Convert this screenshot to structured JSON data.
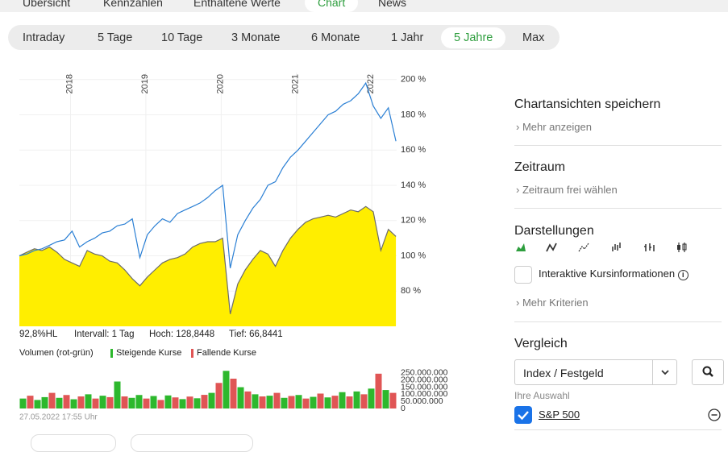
{
  "tabs": {
    "items": [
      "Übersicht",
      "Kennzahlen",
      "Enthaltene Werte",
      "Chart",
      "News"
    ],
    "selected": 3
  },
  "periods": {
    "items": [
      "Intraday",
      "5 Tage",
      "10 Tage",
      "3 Monate",
      "6 Monate",
      "1 Jahr",
      "5 Jahre",
      "Max"
    ],
    "selected": 6
  },
  "chart": {
    "type": "line",
    "x": [
      2017.32,
      2017.42,
      2017.52,
      2017.62,
      2017.72,
      2017.82,
      2017.92,
      2018.02,
      2018.12,
      2018.22,
      2018.32,
      2018.42,
      2018.52,
      2018.62,
      2018.72,
      2018.82,
      2018.92,
      2019.02,
      2019.12,
      2019.22,
      2019.32,
      2019.42,
      2019.52,
      2019.62,
      2019.72,
      2019.82,
      2019.92,
      2020.02,
      2020.12,
      2020.22,
      2020.32,
      2020.42,
      2020.52,
      2020.62,
      2020.72,
      2020.82,
      2020.92,
      2021.02,
      2021.12,
      2021.22,
      2021.32,
      2021.42,
      2021.52,
      2021.62,
      2021.72,
      2021.82,
      2021.92,
      2022.02,
      2022.12,
      2022.22,
      2022.32
    ],
    "series": [
      {
        "color": "#2a7fd4",
        "values": [
          100,
          101,
          103,
          104,
          106,
          108,
          109,
          114,
          105,
          108,
          110,
          113,
          114,
          117,
          118,
          121,
          99,
          112,
          117,
          121,
          119,
          124,
          126,
          128,
          130,
          133,
          137,
          140,
          93,
          112,
          120,
          127,
          132,
          140,
          142,
          150,
          156,
          160,
          165,
          170,
          175,
          180,
          182,
          186,
          188,
          192,
          198,
          185,
          178,
          184,
          165
        ]
      },
      {
        "color": "#6b6b6b",
        "fill": "#ffee00",
        "values": [
          100,
          102,
          104,
          103,
          105,
          102,
          98,
          96,
          94,
          103,
          101,
          100,
          97,
          96,
          92,
          87,
          83,
          88,
          92,
          96,
          98,
          99,
          101,
          105,
          107,
          108,
          108,
          110,
          67,
          84,
          92,
          98,
          103,
          101,
          94,
          103,
          110,
          115,
          119,
          121,
          122,
          123,
          122,
          124,
          126,
          125,
          128,
          125,
          103,
          115,
          111
        ]
      }
    ],
    "xlim": [
      2017.32,
      2022.33
    ],
    "xticks": [
      2018,
      2019,
      2020,
      2021,
      2022
    ],
    "ylim": [
      60,
      204
    ],
    "yticks": [
      {
        "value": 80,
        "label": "80 %"
      },
      {
        "value": 100,
        "label": "100 %"
      },
      {
        "value": 120,
        "label": "120 %"
      },
      {
        "value": 140,
        "label": "140 %"
      },
      {
        "value": 160,
        "label": "160 %"
      },
      {
        "value": 180,
        "label": "180 %"
      },
      {
        "value": 200,
        "label": "200 %"
      }
    ],
    "grid": true
  },
  "stats": [
    "92,8%HL",
    "Intervall: 1 Tag",
    "Hoch: 128,8448",
    "Tief: 66,8441"
  ],
  "volume": {
    "type": "bar",
    "title": "Volumen (rot-grün)",
    "series": [
      {
        "name": "Steigende Kurse",
        "color": "#2db82d",
        "values": [
          70000000,
          null,
          60000000,
          80000000,
          null,
          75000000,
          null,
          65000000,
          null,
          100000000,
          null,
          90000000,
          null,
          190000000,
          null,
          75000000,
          95000000,
          null,
          88000000,
          null,
          92000000,
          null,
          66000000,
          null,
          72000000,
          null,
          110000000,
          null,
          265000000,
          null,
          150000000,
          null,
          100000000,
          null,
          90000000,
          null,
          75000000,
          null,
          95000000,
          null,
          82000000,
          null,
          78000000,
          null,
          115000000,
          null,
          120000000,
          null,
          140000000,
          null,
          130000000,
          null
        ]
      },
      {
        "name": "Fallende Kurse",
        "color": "#e05555",
        "values": [
          null,
          90000000,
          null,
          null,
          110000000,
          null,
          95000000,
          null,
          85000000,
          null,
          70000000,
          null,
          80000000,
          null,
          85000000,
          null,
          null,
          70000000,
          null,
          60000000,
          null,
          78000000,
          null,
          84000000,
          null,
          96000000,
          null,
          180000000,
          null,
          210000000,
          null,
          120000000,
          null,
          85000000,
          null,
          110000000,
          null,
          88000000,
          null,
          70000000,
          null,
          105000000,
          null,
          90000000,
          null,
          85000000,
          null,
          100000000,
          null,
          245000000,
          null,
          110000000
        ]
      }
    ],
    "ylim": [
      0,
      295000000
    ],
    "yticks": [
      0,
      {
        "value": 50000000,
        "label": "50.000.000"
      },
      {
        "value": 100000000,
        "label": "100.000.000"
      },
      {
        "value": 150000000,
        "label": "150.000.000"
      },
      {
        "value": 200000000,
        "label": "200.000.000"
      },
      {
        "value": 250000000,
        "label": "250.000.000"
      }
    ]
  },
  "timestamp": "27.05.2022 17:55 Uhr",
  "sidebar": {
    "save": {
      "title": "Chartansichten speichern",
      "link": "Mehr anzeigen"
    },
    "period": {
      "title": "Zeitraum",
      "link": "Zeitraum frei wählen"
    },
    "display": {
      "title": "Darstellungen",
      "checkbox": "Interaktive Kursinformationen",
      "checked": false,
      "link": "Mehr Kriterien"
    },
    "compare": {
      "title": "Vergleich",
      "select": "Index / Festgeld",
      "selection_label": "Ihre Auswahl",
      "selection": "S&P 500",
      "checked": true
    }
  }
}
